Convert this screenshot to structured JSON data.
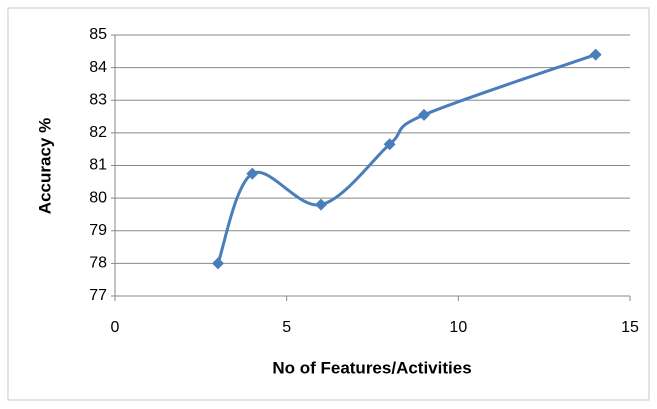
{
  "chart_data": {
    "type": "line",
    "smooth": true,
    "xlabel": "No of Features/Activities",
    "ylabel": "Accuracy %",
    "x": [
      3,
      4,
      6,
      8,
      9,
      14
    ],
    "series": [
      {
        "name": "Accuracy",
        "color": "#4a7ebb",
        "values": [
          78,
          80.75,
          79.8,
          81.65,
          82.55,
          84.4
        ]
      }
    ],
    "xlim": [
      0,
      15
    ],
    "xticks": [
      0,
      5,
      10,
      15
    ],
    "ylim": [
      77,
      85
    ],
    "yticks": [
      77,
      78,
      79,
      80,
      81,
      82,
      83,
      84,
      85
    ],
    "grid": true,
    "legend": false
  }
}
